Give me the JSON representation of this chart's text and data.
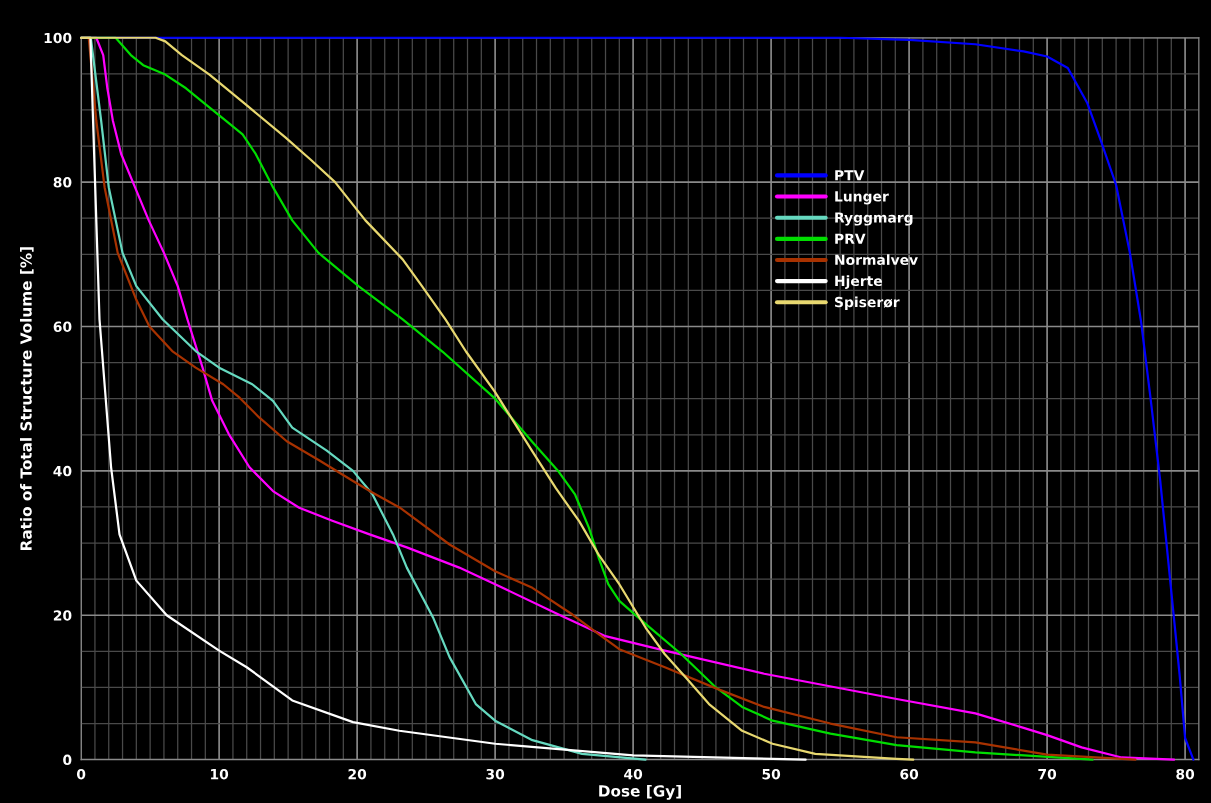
{
  "chart_data": {
    "type": "line",
    "xlabel": "Dose [Gy]",
    "ylabel": "Ratio of Total Structure Volume [%]",
    "xlim": [
      0,
      81
    ],
    "xticks": [
      0,
      10,
      20,
      30,
      40,
      50,
      60,
      70,
      80
    ],
    "ylim": [
      0,
      100
    ],
    "yticks": [
      0,
      20,
      40,
      60,
      80,
      100
    ],
    "grid": true,
    "legend": "right",
    "marker": "none",
    "line_style": "solid",
    "series": [
      {
        "name": "PTV",
        "color": "#0000ff",
        "x": [
          0,
          30,
          55,
          60,
          64.8,
          68.3,
          70,
          71.5,
          72.9,
          73.9,
          75,
          76,
          76.8,
          77.5,
          78.2,
          78.9,
          79.6,
          80,
          80.6
        ],
        "values": [
          100,
          100,
          100,
          99.7,
          99.1,
          98.1,
          97.4,
          95.8,
          91,
          85.7,
          79.6,
          70.2,
          60.8,
          50,
          38.6,
          25.2,
          11.8,
          3,
          0
        ]
      },
      {
        "name": "Lunger",
        "color": "#ff00ff",
        "x": [
          0,
          1.1,
          1.6,
          1.9,
          2.3,
          2.9,
          3.9,
          4.9,
          6.0,
          7.0,
          7.7,
          8.8,
          9.5,
          10.7,
          12.2,
          13.9,
          15.8,
          18.2,
          20.9,
          23.6,
          27.4,
          30,
          34.6,
          38,
          42.3,
          49.5,
          59.1,
          64.8,
          68.3,
          70,
          72.5,
          75.4,
          79.2
        ],
        "values": [
          100,
          100,
          97.6,
          93,
          88.5,
          83.9,
          79.3,
          74.7,
          70.2,
          65.6,
          61,
          54.3,
          49.7,
          45.1,
          40.5,
          37.2,
          34.9,
          33.1,
          31.2,
          29.4,
          26.6,
          24.3,
          20.1,
          17.1,
          15.1,
          11.9,
          8.4,
          6.4,
          4.4,
          3.4,
          1.7,
          0.3,
          0
        ]
      },
      {
        "name": "Ryggmarg",
        "color": "#66d9c0",
        "x": [
          0,
          0.7,
          1.45,
          2.0,
          3.0,
          4.0,
          5.9,
          8.3,
          10,
          12.4,
          13.9,
          15.3,
          17.8,
          19.7,
          21.1,
          22.6,
          23.6,
          25.5,
          26.7,
          28.6,
          30,
          32.7,
          36.3,
          40.9
        ],
        "values": [
          100,
          100,
          88.5,
          79.3,
          70.2,
          65.6,
          61,
          56.6,
          54.3,
          52,
          49.7,
          46,
          42.8,
          40,
          36.8,
          31.2,
          26.6,
          19.7,
          14.2,
          7.7,
          5.4,
          2.7,
          0.8,
          0
        ]
      },
      {
        "name": "PRV",
        "color": "#00dd00",
        "x": [
          0,
          2.5,
          3.6,
          4.5,
          6.1,
          7.6,
          9.0,
          10.5,
          11.7,
          12.65,
          13.9,
          15.3,
          17.2,
          20.1,
          23.3,
          26.2,
          30,
          32.7,
          34.6,
          35.8,
          36.8,
          37.5,
          38.2,
          39,
          40.9,
          43.5,
          46,
          47.9,
          50.1,
          54.3,
          59.1,
          64.8,
          73.3
        ],
        "values": [
          100,
          100,
          97.6,
          96.2,
          94.9,
          93,
          90.8,
          88.5,
          86.6,
          83.9,
          79.3,
          74.7,
          70.2,
          65.6,
          61,
          56.5,
          50,
          44,
          39.9,
          36.7,
          32.1,
          28,
          24.3,
          22,
          18.8,
          14.6,
          10,
          7.3,
          5.4,
          3.6,
          2.0,
          1.0,
          0
        ]
      },
      {
        "name": "Normalvev",
        "color": "#a83200",
        "x": [
          0,
          0.55,
          1.1,
          1.7,
          2.65,
          4.0,
          4.95,
          6.6,
          8.3,
          10.3,
          11.5,
          12.9,
          14.9,
          17.3,
          19.7,
          21.1,
          23.1,
          26.7,
          30,
          32.7,
          35.6,
          37.5,
          39,
          42.3,
          46.1,
          49.5,
          54.3,
          59.1,
          64.8,
          70,
          76.4
        ],
        "values": [
          100,
          100,
          88.5,
          79.3,
          70.2,
          63.7,
          60,
          56.6,
          54.3,
          52,
          50.1,
          47.4,
          44.1,
          41.4,
          38.6,
          37,
          34.9,
          29.8,
          26.1,
          23.8,
          20.1,
          17.4,
          15.3,
          12.8,
          9.8,
          7.3,
          5.0,
          3.1,
          2.4,
          0.7,
          0
        ]
      },
      {
        "name": "Hjerte",
        "color": "#ffffff",
        "x": [
          0,
          0.67,
          1.33,
          2.17,
          2.78,
          4.0,
          6.2,
          10,
          12,
          15.3,
          19.7,
          23.06,
          30,
          40,
          52.5
        ],
        "values": [
          100,
          100,
          61,
          40.5,
          31.2,
          24.8,
          20,
          15.1,
          12.8,
          8.2,
          5.2,
          4.0,
          2.2,
          0.6,
          0
        ]
      },
      {
        "name": "Spiserør",
        "color": "#e8d870",
        "x": [
          0,
          5.4,
          6.1,
          7.3,
          9.3,
          11.9,
          14.8,
          16.7,
          18.4,
          20.6,
          23.3,
          24.7,
          26.4,
          27.9,
          30,
          32.7,
          34.4,
          36.1,
          37.5,
          39,
          40.9,
          42.3,
          43.8,
          45.5,
          47.9,
          50.1,
          53.2,
          59.1,
          60.3
        ],
        "values": [
          100,
          100,
          99.5,
          97.6,
          94.9,
          90.8,
          86.2,
          83,
          80,
          74.7,
          69.3,
          65.6,
          61,
          56.5,
          50.9,
          42.7,
          37.6,
          33,
          28.4,
          24.3,
          18.3,
          14.6,
          11.4,
          7.7,
          4.0,
          2.2,
          0.8,
          0.1,
          0
        ]
      }
    ]
  }
}
